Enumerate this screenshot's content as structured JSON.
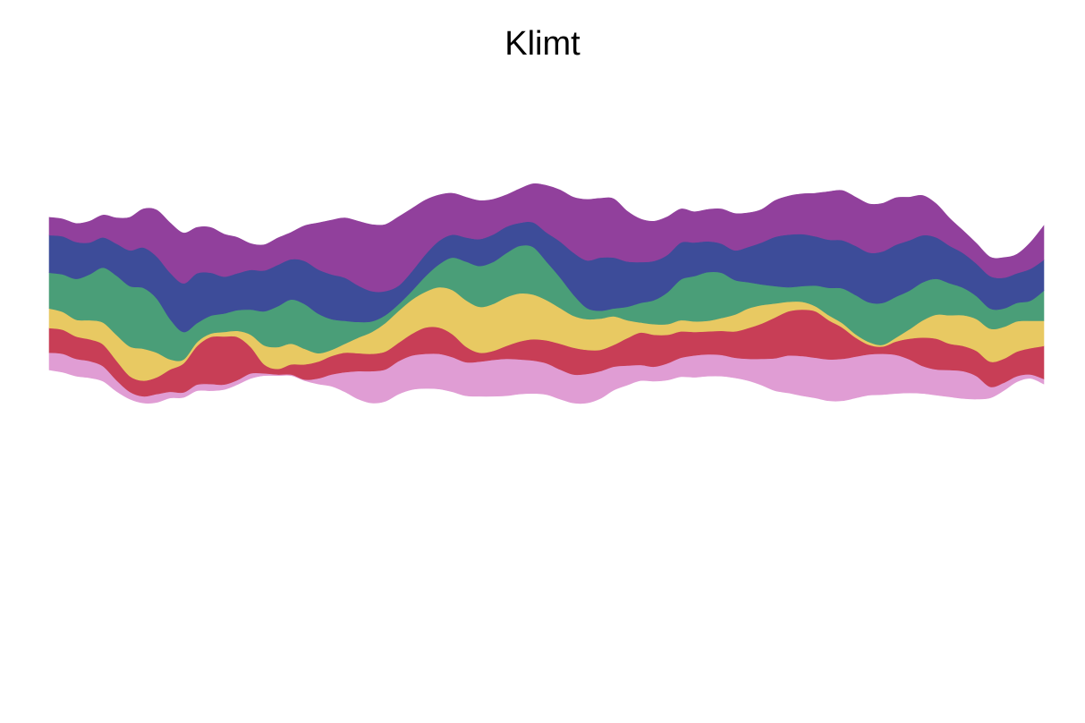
{
  "chart_data": {
    "type": "area",
    "subtype": "streamgraph",
    "title": "Klimt",
    "xlabel": "",
    "ylabel": "",
    "axes_visible": false,
    "grid": false,
    "legend": "none",
    "x": [
      0,
      1,
      2,
      3,
      4,
      5,
      6,
      7,
      8,
      9,
      10,
      11,
      12,
      13,
      14,
      15,
      16,
      17,
      18,
      19,
      20,
      21,
      22,
      23,
      24,
      25,
      26,
      27,
      28,
      29,
      30,
      31,
      32,
      33,
      34,
      35,
      36,
      37,
      38,
      39,
      40,
      41,
      42,
      43,
      44,
      45,
      46,
      47,
      48,
      49,
      50,
      51,
      52,
      53,
      54,
      55,
      56,
      57,
      58,
      59,
      60,
      61,
      62,
      63,
      64,
      65,
      66,
      67,
      68,
      69,
      70,
      71,
      72,
      73,
      74
    ],
    "baseline": [
      1.0,
      0.8,
      0.45,
      0.3,
      0.0,
      -0.9,
      -1.6,
      -1.95,
      -1.9,
      -1.5,
      -1.45,
      -0.85,
      -0.85,
      -0.75,
      -0.3,
      0.25,
      0.5,
      0.5,
      0.5,
      0.05,
      -0.25,
      -0.45,
      -0.95,
      -1.6,
      -1.95,
      -1.8,
      -1.15,
      -0.75,
      -0.65,
      -0.7,
      -0.95,
      -1.3,
      -1.35,
      -1.35,
      -1.3,
      -1.15,
      -1.1,
      -1.2,
      -1.6,
      -1.95,
      -1.95,
      -1.55,
      -0.8,
      -0.35,
      0.05,
      0.0,
      0.1,
      0.4,
      0.35,
      0.45,
      0.45,
      0.3,
      0.05,
      -0.35,
      -0.85,
      -1.05,
      -1.3,
      -1.5,
      -1.75,
      -1.75,
      -1.5,
      -1.25,
      -1.2,
      -1.1,
      -1.05,
      -1.1,
      -1.25,
      -1.4,
      -1.55,
      -1.6,
      -1.5,
      -0.85,
      -0.05,
      0.25,
      -0.25
    ],
    "series": [
      {
        "color": "#e09dd4",
        "values": [
          1.55,
          1.65,
          1.55,
          1.5,
          1.35,
          1.0,
          0.65,
          0.6,
          0.75,
          0.55,
          0.45,
          0.55,
          0.6,
          0.45,
          0.4,
          0.45,
          0.2,
          0.1,
          0.1,
          0.1,
          0.5,
          1.05,
          1.75,
          2.5,
          2.85,
          2.85,
          2.95,
          3.05,
          3.1,
          3.15,
          3.1,
          3.0,
          3.1,
          3.25,
          3.3,
          3.1,
          2.95,
          2.8,
          2.65,
          2.55,
          2.6,
          2.45,
          2.1,
          1.75,
          1.4,
          1.3,
          1.5,
          1.7,
          1.95,
          1.95,
          1.9,
          1.8,
          1.95,
          2.35,
          2.9,
          3.35,
          3.55,
          3.6,
          3.7,
          3.75,
          3.7,
          3.65,
          3.65,
          3.45,
          3.0,
          2.45,
          2.3,
          2.4,
          2.45,
          2.05,
          1.0,
          0.7,
          0.5,
          0.35,
          0.45
        ]
      },
      {
        "color": "#c83e56",
        "values": [
          2.2,
          2.15,
          2.0,
          1.95,
          1.95,
          1.75,
          1.4,
          1.4,
          1.5,
          2.0,
          2.6,
          3.45,
          4.2,
          4.3,
          3.85,
          2.35,
          0.8,
          0.5,
          0.9,
          1.35,
          1.5,
          1.65,
          1.75,
          1.6,
          1.55,
          1.6,
          1.65,
          1.95,
          2.35,
          2.35,
          2.05,
          1.4,
          0.8,
          0.8,
          1.15,
          1.6,
          1.9,
          2.05,
          2.3,
          2.4,
          2.15,
          1.9,
          1.95,
          2.45,
          2.9,
          2.85,
          2.55,
          2.35,
          2.1,
          2.05,
          2.15,
          2.35,
          2.75,
          3.15,
          3.65,
          3.95,
          4.15,
          4.15,
          3.5,
          2.8,
          1.7,
          0.85,
          0.65,
          1.2,
          1.85,
          2.55,
          2.75,
          2.35,
          2.25,
          2.25,
          2.25,
          2.15,
          2.2,
          2.35,
          2.95
        ]
      },
      {
        "color": "#e8c962",
        "values": [
          1.75,
          1.6,
          1.5,
          1.7,
          1.95,
          2.3,
          2.65,
          2.85,
          2.2,
          0.9,
          0.35,
          0.35,
          0.3,
          0.4,
          0.55,
          1.1,
          1.7,
          1.95,
          1.85,
          1.4,
          0.75,
          0.55,
          0.8,
          1.4,
          1.95,
          2.55,
          2.85,
          3.05,
          3.2,
          3.6,
          3.95,
          4.15,
          4.1,
          4.2,
          4.35,
          4.3,
          4.0,
          3.6,
          3.2,
          2.85,
          2.75,
          2.8,
          2.55,
          1.6,
          0.9,
          0.95,
          0.95,
          1.0,
          0.95,
          0.95,
          1.15,
          1.5,
          1.75,
          1.65,
          1.25,
          0.85,
          0.7,
          0.45,
          0.45,
          0.4,
          0.3,
          0.25,
          0.15,
          0.35,
          0.85,
          1.55,
          2.15,
          2.55,
          2.75,
          2.85,
          2.95,
          2.85,
          2.7,
          2.45,
          2.25
        ]
      },
      {
        "color": "#4a9e78",
        "values": [
          3.2,
          3.35,
          3.65,
          4.1,
          4.9,
          5.3,
          5.4,
          5.45,
          4.85,
          3.6,
          2.45,
          1.7,
          1.6,
          1.65,
          1.85,
          2.25,
          3.05,
          3.65,
          3.95,
          4.0,
          3.55,
          2.75,
          2.05,
          1.4,
          0.95,
          0.7,
          0.6,
          0.8,
          1.4,
          2.05,
          2.9,
          3.45,
          3.65,
          3.75,
          3.95,
          4.25,
          4.25,
          3.45,
          2.75,
          1.9,
          1.0,
          0.7,
          0.7,
          1.2,
          1.75,
          2.15,
          2.85,
          3.65,
          4.05,
          4.35,
          4.05,
          3.1,
          2.35,
          1.85,
          1.55,
          1.3,
          1.4,
          1.85,
          2.45,
          3.1,
          3.5,
          3.55,
          3.75,
          3.65,
          3.45,
          3.4,
          3.2,
          2.85,
          2.45,
          2.05,
          1.8,
          1.65,
          1.65,
          1.8,
          2.7
        ]
      },
      {
        "color": "#3d4c99",
        "values": [
          3.35,
          3.4,
          3.3,
          2.85,
          2.7,
          2.85,
          3.2,
          3.6,
          3.75,
          4.15,
          4.35,
          4.45,
          3.85,
          3.3,
          3.3,
          3.55,
          3.65,
          3.7,
          3.6,
          3.85,
          3.95,
          4.0,
          3.85,
          3.25,
          2.7,
          2.15,
          1.65,
          1.75,
          1.95,
          2.1,
          2.05,
          2.15,
          2.4,
          2.45,
          2.35,
          2.05,
          2.2,
          2.6,
          3.2,
          3.75,
          4.25,
          4.75,
          4.55,
          4.05,
          3.65,
          3.5,
          3.35,
          3.3,
          3.0,
          2.75,
          2.6,
          2.65,
          3.15,
          3.75,
          4.4,
          4.7,
          4.65,
          4.4,
          4.3,
          4.3,
          4.4,
          4.45,
          4.6,
          4.65,
          4.5,
          4.2,
          3.7,
          3.35,
          3.1,
          2.9,
          2.9,
          2.75,
          2.65,
          2.85,
          2.75
        ]
      },
      {
        "color": "#91409c",
        "values": [
          1.6,
          1.55,
          1.65,
          1.9,
          2.0,
          2.3,
          2.95,
          3.45,
          4.15,
          4.45,
          4.5,
          4.1,
          4.05,
          3.8,
          3.2,
          2.35,
          2.3,
          2.4,
          2.4,
          3.15,
          4.15,
          4.85,
          5.35,
          5.75,
          5.95,
          5.95,
          6.15,
          5.6,
          4.85,
          4.1,
          3.7,
          3.6,
          3.45,
          3.15,
          2.85,
          3.05,
          3.45,
          4.2,
          4.6,
          4.95,
          5.45,
          5.3,
          5.25,
          4.5,
          3.85,
          3.55,
          3.4,
          3.0,
          2.75,
          2.85,
          3.1,
          3.3,
          3.05,
          2.95,
          3.25,
          3.45,
          3.6,
          3.85,
          4.3,
          4.45,
          4.35,
          4.35,
          4.3,
          4.2,
          3.85,
          3.55,
          3.0,
          2.45,
          2.0,
          1.8,
          1.7,
          1.8,
          1.7,
          2.35,
          3.05
        ]
      }
    ]
  }
}
